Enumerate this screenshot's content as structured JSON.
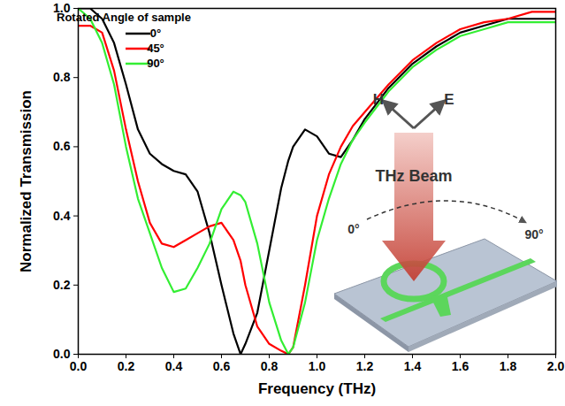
{
  "chart_data": {
    "type": "line",
    "x_label": "Frequency (THz)",
    "y_label": "Normalized Transmission",
    "legend_title": "Rotated Angle of sample",
    "legend": "upper left",
    "annotations": [
      "H",
      "E",
      "THz Beam",
      "0°",
      "90°"
    ],
    "xlim": [
      0,
      2.0
    ],
    "ylim": [
      0,
      1.0
    ],
    "xticks": [
      {
        "value": 0,
        "label": "0.0"
      },
      {
        "value": 0.2,
        "label": "0.2"
      },
      {
        "value": 0.4,
        "label": "0.4"
      },
      {
        "value": 0.6,
        "label": "0.6"
      },
      {
        "value": 0.8,
        "label": "0.8"
      },
      {
        "value": 1.0,
        "label": "1.0"
      },
      {
        "value": 1.2,
        "label": "1.2"
      },
      {
        "value": 1.4,
        "label": "1.4"
      },
      {
        "value": 1.6,
        "label": "1.6"
      },
      {
        "value": 1.8,
        "label": "1.8"
      },
      {
        "value": 2.0,
        "label": "2.0"
      }
    ],
    "yticks": [
      {
        "value": 0,
        "label": "0.0"
      },
      {
        "value": 0.2,
        "label": "0.2"
      },
      {
        "value": 0.4,
        "label": "0.4"
      },
      {
        "value": 0.6,
        "label": "0.6"
      },
      {
        "value": 0.8,
        "label": "0.8"
      },
      {
        "value": 1.0,
        "label": "1.0"
      }
    ],
    "x": [
      0,
      0.05,
      0.1,
      0.15,
      0.2,
      0.25,
      0.3,
      0.35,
      0.4,
      0.45,
      0.5,
      0.55,
      0.6,
      0.65,
      0.68,
      0.7,
      0.75,
      0.8,
      0.85,
      0.88,
      0.9,
      0.95,
      1.0,
      1.05,
      1.1,
      1.15,
      1.2,
      1.3,
      1.4,
      1.5,
      1.6,
      1.7,
      1.8,
      1.9,
      2.0
    ],
    "series": [
      {
        "name": "0°",
        "color": "#000000",
        "values": [
          1.0,
          1.0,
          0.97,
          0.9,
          0.78,
          0.65,
          0.58,
          0.55,
          0.53,
          0.52,
          0.47,
          0.35,
          0.2,
          0.06,
          0.0,
          0.03,
          0.12,
          0.3,
          0.48,
          0.56,
          0.6,
          0.65,
          0.63,
          0.58,
          0.57,
          0.62,
          0.68,
          0.77,
          0.84,
          0.89,
          0.93,
          0.95,
          0.97,
          0.97,
          0.97
        ]
      },
      {
        "name": "45°",
        "color": "#ff0000",
        "values": [
          0.95,
          0.95,
          0.93,
          0.82,
          0.65,
          0.5,
          0.38,
          0.32,
          0.31,
          0.33,
          0.35,
          0.37,
          0.38,
          0.33,
          0.27,
          0.2,
          0.08,
          0.03,
          0.01,
          0.0,
          0.02,
          0.2,
          0.4,
          0.52,
          0.6,
          0.66,
          0.7,
          0.78,
          0.85,
          0.9,
          0.94,
          0.96,
          0.97,
          0.99,
          0.99
        ]
      },
      {
        "name": "90°",
        "color": "#33ee33",
        "values": [
          1.0,
          0.97,
          0.9,
          0.78,
          0.6,
          0.45,
          0.35,
          0.25,
          0.18,
          0.19,
          0.25,
          0.32,
          0.42,
          0.47,
          0.46,
          0.44,
          0.32,
          0.15,
          0.04,
          0.0,
          0.02,
          0.15,
          0.33,
          0.45,
          0.55,
          0.62,
          0.67,
          0.76,
          0.83,
          0.88,
          0.92,
          0.94,
          0.96,
          0.96,
          0.96
        ]
      }
    ]
  }
}
